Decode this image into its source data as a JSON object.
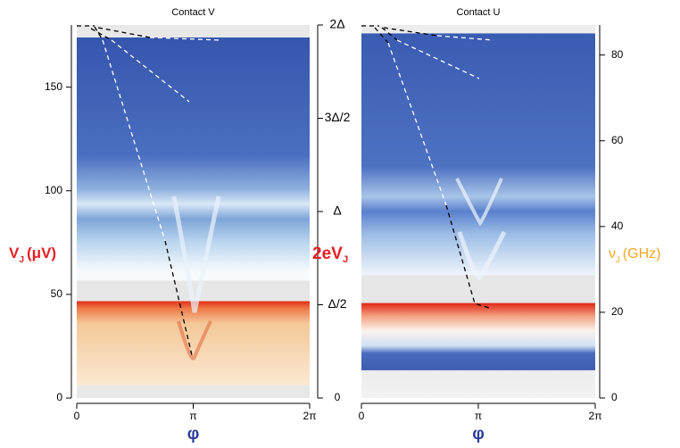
{
  "chart_data": [
    {
      "type": "heatmap",
      "title": "Contact V",
      "xlabel": "φ",
      "xlim": [
        0,
        6.2832
      ],
      "xticks": [
        0,
        {
          "value": 3.1416,
          "label": "π"
        },
        {
          "value": 6.2832,
          "label": "2π"
        }
      ],
      "ylabel": {
        "symbol": "V",
        "subscript": "J",
        "unit": "(μV)"
      },
      "ylim": [
        0,
        180
      ],
      "yticks": [
        0,
        50,
        100,
        150
      ],
      "y2label": {
        "symbol": "2eV",
        "subscript": "J"
      },
      "y2lim": [
        0,
        2
      ],
      "y2ticks": [
        0,
        {
          "value": 0.5,
          "label": "Δ/2"
        },
        {
          "value": 1,
          "label": "Δ"
        },
        {
          "value": 1.5,
          "label": "3Δ/2"
        },
        {
          "value": 2,
          "label": "2Δ"
        }
      ]
    },
    {
      "type": "heatmap",
      "title": "Contact U",
      "xlabel": "φ",
      "xlim": [
        0,
        6.2832
      ],
      "xticks": [
        0,
        {
          "value": 3.1416,
          "label": "π"
        },
        {
          "value": 6.2832,
          "label": "2π"
        }
      ],
      "y2label": {
        "symbol": "ν",
        "subscript": "J",
        "unit": "(GHz)"
      },
      "y2lim": [
        0,
        87
      ],
      "y2ticks": [
        0,
        20,
        40,
        60,
        80
      ]
    }
  ]
}
